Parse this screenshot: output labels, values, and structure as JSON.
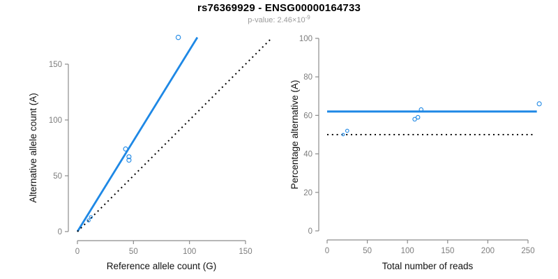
{
  "header": {
    "title": "rs76369929 - ENSG00000164733",
    "subtitle_prefix": "p-value: 2.46×10",
    "subtitle_exponent": "-9"
  },
  "colors": {
    "accent_blue": "#1E88E5",
    "dotted_black": "#000000",
    "axis_gray": "#8c8c8c",
    "tick_text_gray": "#7d7d7d",
    "axis_label_color": "#111111",
    "subtitle_gray": "#9b9b9b",
    "background": "#ffffff"
  },
  "chart_data": [
    {
      "id": "allele-count-scatter",
      "type": "scatter",
      "title": "",
      "xlabel": "Reference allele count (G)",
      "ylabel": "Alternative allele count (A)",
      "xticks": [
        0,
        50,
        100,
        150
      ],
      "yticks": [
        0,
        50,
        100,
        150
      ],
      "xlim": [
        0,
        172
      ],
      "ylim": [
        0,
        175
      ],
      "grid": false,
      "points": [
        {
          "x": 10,
          "y": 10,
          "r": 2.2
        },
        {
          "x": 12,
          "y": 13,
          "r": 2.2
        },
        {
          "x": 43,
          "y": 74,
          "r": 3.0
        },
        {
          "x": 46,
          "y": 67,
          "r": 3.0
        },
        {
          "x": 46,
          "y": 64,
          "r": 3.0
        },
        {
          "x": 90,
          "y": 174,
          "r": 3.2
        }
      ],
      "lines": [
        {
          "name": "fit-line",
          "style": "solid",
          "color": "blue",
          "x1": 0,
          "y1": 0,
          "x2": 107,
          "y2": 174,
          "width": 2.8
        },
        {
          "name": "identity-line",
          "style": "dotted",
          "color": "black",
          "x1": 0,
          "y1": 0,
          "x2": 172,
          "y2": 172,
          "width": 2
        }
      ]
    },
    {
      "id": "percentage-vs-reads-scatter",
      "type": "scatter",
      "title": "",
      "xlabel": "Total number of reads",
      "ylabel": "Percentage alternative (A)",
      "xticks": [
        0,
        50,
        100,
        150,
        200,
        250
      ],
      "yticks": [
        0,
        20,
        40,
        60,
        80,
        100
      ],
      "xlim": [
        0,
        265
      ],
      "ylim": [
        0,
        100
      ],
      "grid": false,
      "points": [
        {
          "x": 20,
          "y": 50,
          "r": 1.8
        },
        {
          "x": 25,
          "y": 52,
          "r": 2.3
        },
        {
          "x": 109,
          "y": 58,
          "r": 2.7
        },
        {
          "x": 113,
          "y": 59,
          "r": 2.7
        },
        {
          "x": 117,
          "y": 63,
          "r": 2.7
        },
        {
          "x": 264,
          "y": 66,
          "r": 3.0
        }
      ],
      "lines": [
        {
          "name": "fit-line",
          "style": "solid",
          "color": "blue",
          "x1": 0,
          "y1": 62,
          "x2": 261,
          "y2": 62,
          "width": 3
        },
        {
          "name": "fifty-percent-line",
          "style": "dotted",
          "color": "black",
          "x1": 0,
          "y1": 50,
          "x2": 258,
          "y2": 50,
          "width": 2
        }
      ]
    }
  ]
}
